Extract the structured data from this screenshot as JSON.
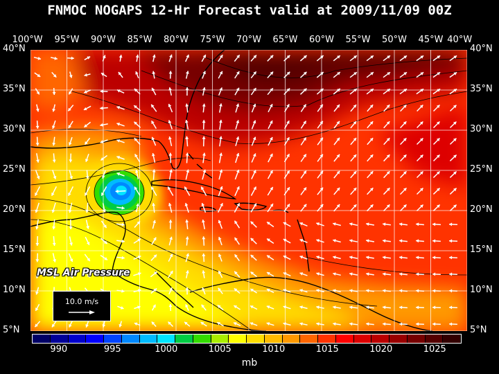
{
  "title": "FNMOC NOGAPS 12-Hr Forecast valid at 2009/11/09 00Z",
  "lon_labels": [
    "100°W",
    "95°W",
    "90°W",
    "85°W",
    "80°W",
    "75°W",
    "70°W",
    "65°W",
    "60°W",
    "55°W",
    "50°W",
    "45°W",
    "40°W"
  ],
  "lat_labels": [
    "40°N",
    "35°N",
    "30°N",
    "25°N",
    "20°N",
    "15°N",
    "10°N",
    "5°N"
  ],
  "field_label": "MSL Air Pressure",
  "reference_vector": {
    "label": "10.0 m/s"
  },
  "colorbar": {
    "unit": "mb",
    "labels": [
      "990",
      "995",
      "1000",
      "1005",
      "1010",
      "1015",
      "1020",
      "1025"
    ],
    "colors": [
      "#000066",
      "#000099",
      "#0000cc",
      "#0000ff",
      "#0044ff",
      "#0088ff",
      "#00bbff",
      "#00e5ff",
      "#00cc44",
      "#33dd00",
      "#aaee00",
      "#ffff00",
      "#ffdd00",
      "#ffbb00",
      "#ff9900",
      "#ff6600",
      "#ff3300",
      "#ff0000",
      "#dd0000",
      "#bb0000",
      "#990000",
      "#770000",
      "#550000",
      "#330000"
    ]
  },
  "colors": {
    "land_outline": "#000000",
    "grid": "#ffffff",
    "vector": "#ffffff"
  }
}
